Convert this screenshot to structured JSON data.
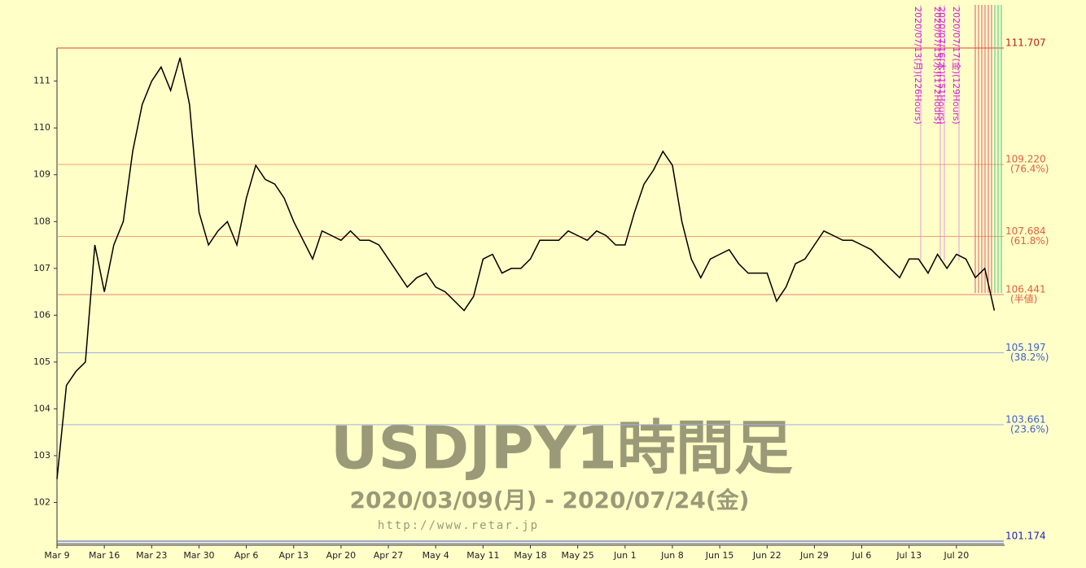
{
  "chart_data": {
    "type": "line",
    "title": "USDJPY1時間足",
    "subtitle": "2020/03/09(月) - 2020/07/24(金)",
    "source": "http://www.retar.jp",
    "categories": [
      "Mar 9",
      null,
      null,
      null,
      null,
      "Mar 16",
      null,
      null,
      null,
      null,
      "Mar 23",
      null,
      null,
      null,
      null,
      "Mar 30",
      null,
      null,
      null,
      null,
      "Apr 6",
      null,
      null,
      null,
      null,
      "Apr 13",
      null,
      null,
      null,
      null,
      "Apr 20",
      null,
      null,
      null,
      null,
      "Apr 27",
      null,
      null,
      null,
      null,
      "May 4",
      null,
      null,
      null,
      null,
      "May 11",
      null,
      null,
      null,
      null,
      "May 18",
      null,
      null,
      null,
      null,
      "May 25",
      null,
      null,
      null,
      null,
      "Jun 1",
      null,
      null,
      null,
      null,
      "Jun 8",
      null,
      null,
      null,
      null,
      "Jun 15",
      null,
      null,
      null,
      null,
      "Jun 22",
      null,
      null,
      null,
      null,
      "Jun 29",
      null,
      null,
      null,
      null,
      "Jul 6",
      null,
      null,
      null,
      null,
      "Jul 13",
      null,
      null,
      null,
      null,
      "Jul 20",
      null,
      null,
      null,
      null
    ],
    "series": [
      {
        "name": "USDJPY",
        "color": "#000000",
        "values": [
          102.5,
          104.5,
          104.8,
          105.0,
          107.5,
          106.5,
          107.5,
          108.0,
          109.5,
          110.5,
          111.0,
          111.3,
          110.8,
          111.5,
          110.5,
          108.2,
          107.5,
          107.8,
          108.0,
          107.5,
          108.5,
          109.2,
          108.9,
          108.8,
          108.5,
          108.0,
          107.6,
          107.2,
          107.8,
          107.7,
          107.6,
          107.8,
          107.6,
          107.6,
          107.5,
          107.2,
          106.9,
          106.6,
          106.8,
          106.9,
          106.6,
          106.5,
          106.3,
          106.1,
          106.4,
          107.2,
          107.3,
          106.9,
          107.0,
          107.0,
          107.2,
          107.6,
          107.6,
          107.6,
          107.8,
          107.7,
          107.6,
          107.8,
          107.7,
          107.5,
          107.5,
          108.2,
          108.8,
          109.1,
          109.5,
          109.2,
          108.0,
          107.2,
          106.8,
          107.2,
          107.3,
          107.4,
          107.1,
          106.9,
          106.9,
          106.9,
          106.3,
          106.6,
          107.1,
          107.2,
          107.5,
          107.8,
          107.7,
          107.6,
          107.6,
          107.5,
          107.4,
          107.2,
          107.0,
          106.8,
          107.2,
          107.2,
          106.9,
          107.3,
          107.0,
          107.3,
          107.2,
          106.8,
          107.0,
          106.1
        ]
      }
    ],
    "ylim": [
      101.174,
      111.707
    ],
    "yticks": [
      102,
      103,
      104,
      105,
      106,
      107,
      108,
      109,
      110,
      111
    ],
    "levels": [
      {
        "value": 111.707,
        "color": "#e04030"
      },
      {
        "value": 109.22,
        "label": "109.220",
        "note": "(76.4%)",
        "color": "#f0a070"
      },
      {
        "value": 107.684,
        "note": "(61.8%)",
        "color": "#f0a070"
      },
      {
        "value": 106.441,
        "note": "(半値)",
        "color": "#e08070"
      },
      {
        "value": 105.197,
        "note": "(38.2%)",
        "color": "#a0b0e0"
      },
      {
        "value": 103.661,
        "note": "(23.6%)",
        "color": "#a0b0e0"
      },
      {
        "value": 101.174,
        "color": "#4050c0"
      }
    ],
    "markers": [
      "2020/07/13(月)(226Hours)",
      "2020/07/15(水)(172Hours)",
      "2020/07/16(木)(151Hours)",
      "2020/07/17(金)(129Hours)"
    ]
  }
}
